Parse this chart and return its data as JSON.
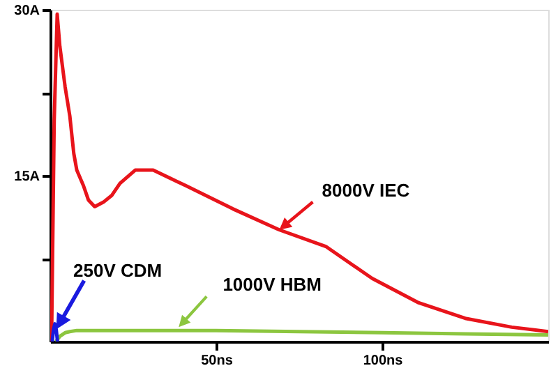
{
  "chart_data": {
    "type": "line",
    "series": [
      {
        "color": "#e8141b",
        "x": [
          0.4,
          1.2,
          2.1,
          2.9,
          4.5,
          5.9,
          7.1,
          8.0,
          10.0,
          11.5,
          13.4,
          16.0,
          18.5,
          21.0,
          25.6,
          31.0,
          40.8,
          55.0,
          69.0,
          83.0,
          97.0,
          111.0,
          125.0,
          139.0,
          150.0
        ],
        "values": [
          0,
          20.0,
          29.6,
          26.7,
          23.0,
          20.4,
          17.0,
          15.5,
          14.1,
          12.8,
          12.2,
          12.6,
          13.2,
          14.3,
          15.5,
          15.5,
          14.1,
          12.0,
          10.1,
          8.6,
          5.7,
          3.5,
          2.1,
          1.3,
          0.9
        ]
      },
      {
        "color": "#8cc63f",
        "x": [
          1.7,
          3.0,
          4.5,
          5.9,
          8.0,
          10.0,
          20.0,
          35.0,
          50.0,
          75.0,
          100.0,
          125.0,
          150.0
        ],
        "values": [
          0,
          0.5,
          0.8,
          0.9,
          1.0,
          1.0,
          1.0,
          1.0,
          1.0,
          0.9,
          0.8,
          0.7,
          0.6
        ]
      },
      {
        "color": "#1a1adf",
        "x": [
          0.6,
          1.0,
          1.4,
          1.8,
          2.2
        ],
        "values": [
          0,
          1.1,
          1.6,
          1.1,
          0
        ]
      }
    ],
    "annotations": [
      {
        "text": "8000V IEC",
        "x": 69,
        "y": 10.1
      },
      {
        "text": "1000V HBM",
        "x": 38.7,
        "y": 1.3
      },
      {
        "text": "250V CDM",
        "x": 1.8,
        "y": 1.1
      }
    ],
    "xlim": [
      0,
      150
    ],
    "ylim": [
      0,
      30
    ],
    "xticks": [
      {
        "value": 50,
        "label": "50ns"
      },
      {
        "value": 100,
        "label": "100ns"
      }
    ],
    "yticks": [
      {
        "value": 7.5,
        "label": null
      },
      {
        "value": 15,
        "label": "15A"
      },
      {
        "value": 22.5,
        "label": null
      },
      {
        "value": 30,
        "label": "30A"
      }
    ],
    "grid": false,
    "marker": "none",
    "line_style": "solid"
  }
}
